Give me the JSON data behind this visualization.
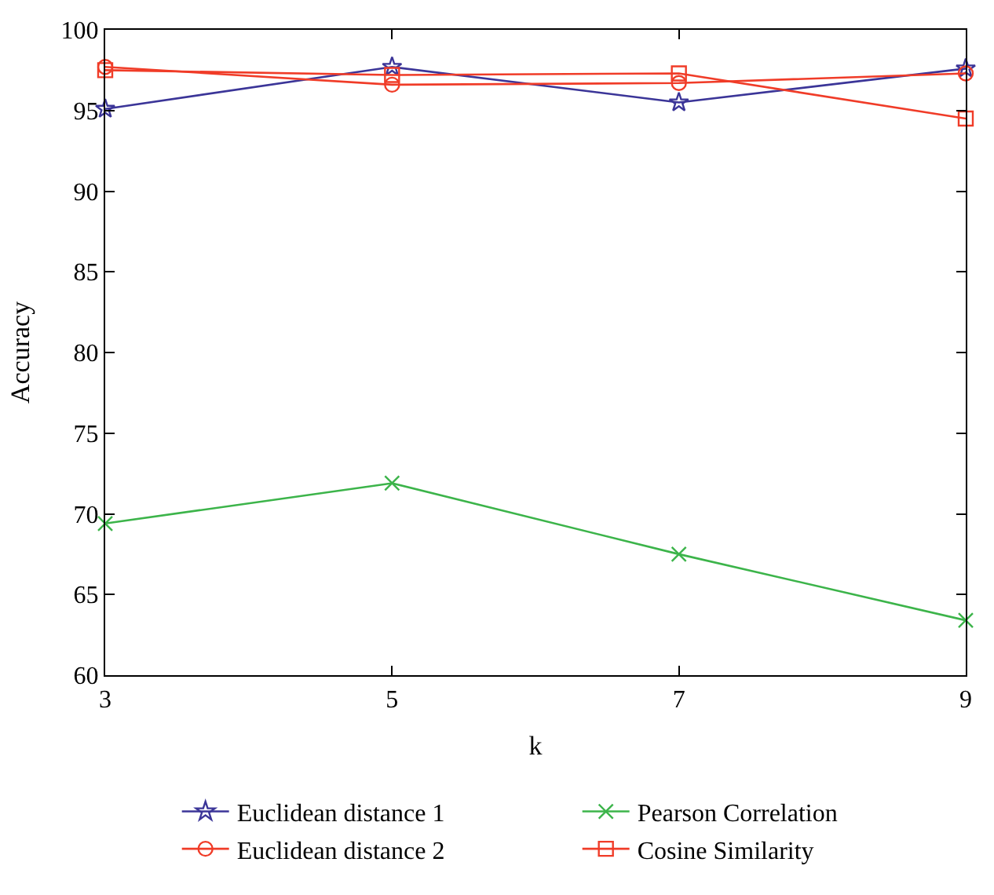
{
  "chart_data": {
    "type": "line",
    "xlabel": "k",
    "ylabel": "Accuracy",
    "x": [
      3,
      5,
      7,
      9
    ],
    "series": [
      {
        "name": "Euclidean distance 1",
        "color": "#3b3598",
        "marker": "star",
        "values": [
          95.1,
          97.7,
          95.5,
          97.6
        ]
      },
      {
        "name": "Euclidean distance 2",
        "color": "#f03c28",
        "marker": "circle",
        "values": [
          97.7,
          96.6,
          96.7,
          97.3
        ]
      },
      {
        "name": "Pearson Correlation",
        "color": "#3cb44a",
        "marker": "cross",
        "values": [
          69.4,
          71.9,
          67.5,
          63.4
        ]
      },
      {
        "name": "Cosine Similarity",
        "color": "#f03c28",
        "marker": "square",
        "values": [
          97.5,
          97.2,
          97.3,
          94.5
        ]
      }
    ],
    "xlim": [
      3,
      9
    ],
    "xticks": [
      3,
      5,
      7,
      9
    ],
    "ylim": [
      60,
      100
    ],
    "yticks": [
      60,
      65,
      70,
      75,
      80,
      85,
      90,
      95,
      100
    ],
    "legend": "bottom",
    "line_style": "solid"
  }
}
